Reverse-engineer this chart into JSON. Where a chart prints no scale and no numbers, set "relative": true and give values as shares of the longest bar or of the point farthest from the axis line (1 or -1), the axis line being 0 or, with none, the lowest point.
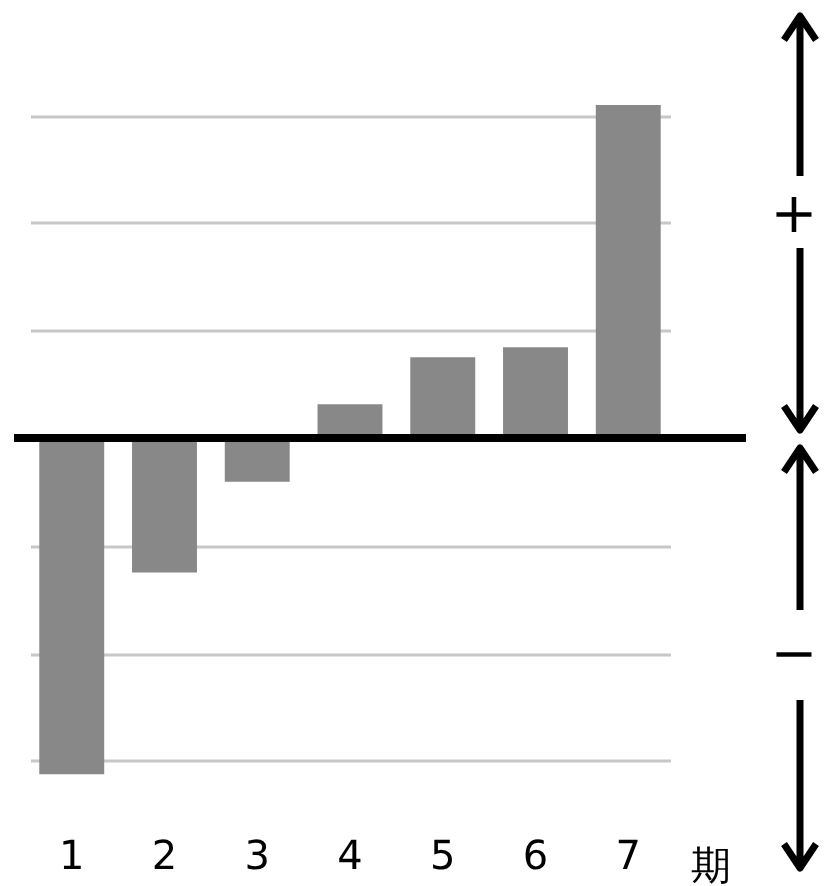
{
  "chart_data": {
    "type": "bar",
    "categories": [
      "1",
      "2",
      "3",
      "4",
      "5",
      "6",
      "7"
    ],
    "xlabel": "期",
    "values": [
      -1,
      -0.4,
      -0.13,
      0.1,
      0.24,
      0.27,
      0.99
    ],
    "color": "#888888",
    "relative": true,
    "grid": "y",
    "annotations": [
      "+",
      "−"
    ]
  }
}
